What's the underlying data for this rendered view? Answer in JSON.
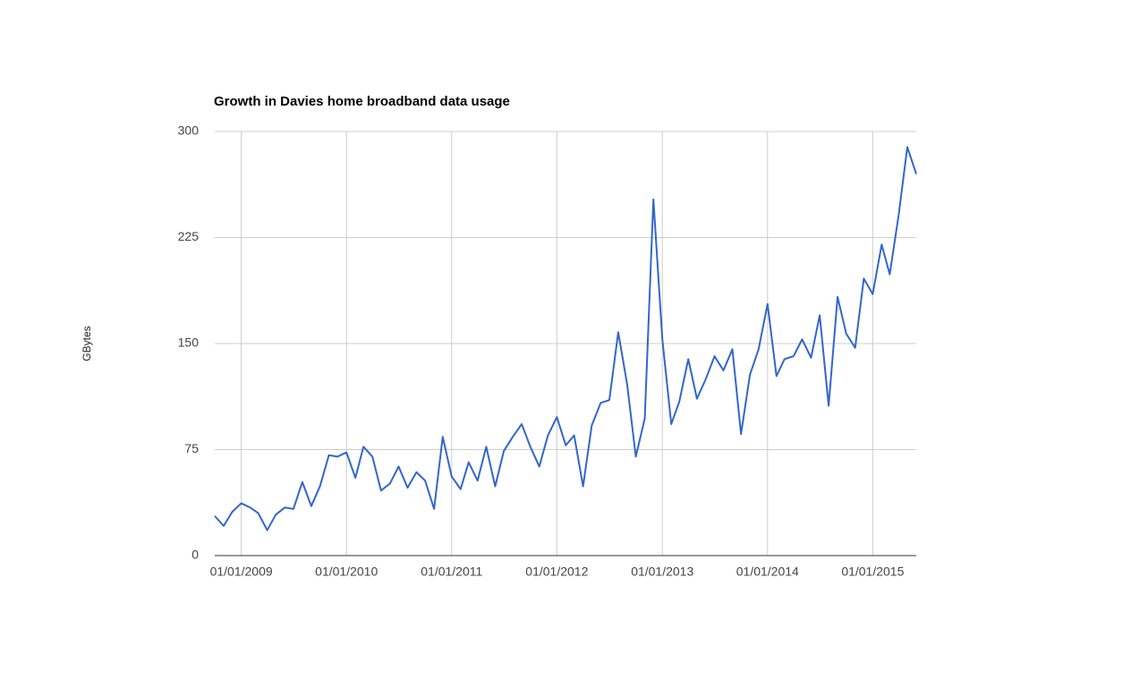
{
  "chart_data": {
    "type": "line",
    "title": "Growth in Davies home broadband data usage",
    "y_label": "GBytes",
    "x": [
      "2008-10-01",
      "2008-11-01",
      "2008-12-01",
      "2009-01-01",
      "2009-02-01",
      "2009-03-01",
      "2009-04-01",
      "2009-05-01",
      "2009-06-01",
      "2009-07-01",
      "2009-08-01",
      "2009-09-01",
      "2009-10-01",
      "2009-11-01",
      "2009-12-01",
      "2010-01-01",
      "2010-02-01",
      "2010-03-01",
      "2010-04-01",
      "2010-05-01",
      "2010-06-01",
      "2010-07-01",
      "2010-08-01",
      "2010-09-01",
      "2010-10-01",
      "2010-11-01",
      "2010-12-01",
      "2011-01-01",
      "2011-02-01",
      "2011-03-01",
      "2011-04-01",
      "2011-05-01",
      "2011-06-01",
      "2011-07-01",
      "2011-08-01",
      "2011-09-01",
      "2011-10-01",
      "2011-11-01",
      "2011-12-01",
      "2012-01-01",
      "2012-02-01",
      "2012-03-01",
      "2012-04-01",
      "2012-05-01",
      "2012-06-01",
      "2012-07-01",
      "2012-08-01",
      "2012-09-01",
      "2012-10-01",
      "2012-11-01",
      "2012-12-01",
      "2013-01-01",
      "2013-02-01",
      "2013-03-01",
      "2013-04-01",
      "2013-05-01",
      "2013-06-01",
      "2013-07-01",
      "2013-08-01",
      "2013-09-01",
      "2013-10-01",
      "2013-11-01",
      "2013-12-01",
      "2014-01-01",
      "2014-02-01",
      "2014-03-01",
      "2014-04-01",
      "2014-05-01",
      "2014-06-01",
      "2014-07-01",
      "2014-08-01",
      "2014-09-01",
      "2014-10-01",
      "2014-11-01",
      "2014-12-01",
      "2015-01-01",
      "2015-02-01",
      "2015-03-01",
      "2015-04-01",
      "2015-05-01",
      "2015-06-01"
    ],
    "values": [
      28,
      21,
      31,
      37,
      34,
      30,
      18,
      29,
      34,
      33,
      52,
      35,
      49,
      71,
      70,
      73,
      55,
      77,
      70,
      46,
      51,
      63,
      48,
      59,
      53,
      33,
      84,
      56,
      47,
      66,
      53,
      77,
      49,
      74,
      84,
      93,
      77,
      63,
      85,
      98,
      78,
      85,
      49,
      92,
      108,
      110,
      158,
      121,
      70,
      97,
      252,
      153,
      93,
      109,
      139,
      111,
      125,
      141,
      131,
      146,
      86,
      128,
      146,
      178,
      127,
      139,
      141,
      153,
      140,
      170,
      106,
      183,
      157,
      147,
      196,
      185,
      220,
      199,
      241,
      289,
      270
    ],
    "color": "#3366cc",
    "xlim": [
      "2008-10-01",
      "2015-06-01"
    ],
    "xticks": [
      {
        "value": "2009-01-01",
        "label": "01/01/2009"
      },
      {
        "value": "2010-01-01",
        "label": "01/01/2010"
      },
      {
        "value": "2011-01-01",
        "label": "01/01/2011"
      },
      {
        "value": "2012-01-01",
        "label": "01/01/2012"
      },
      {
        "value": "2013-01-01",
        "label": "01/01/2013"
      },
      {
        "value": "2014-01-01",
        "label": "01/01/2014"
      },
      {
        "value": "2015-01-01",
        "label": "01/01/2015"
      }
    ],
    "ylim": [
      0,
      300
    ],
    "yticks": [
      0,
      75,
      150,
      225,
      300
    ],
    "grid": true
  }
}
